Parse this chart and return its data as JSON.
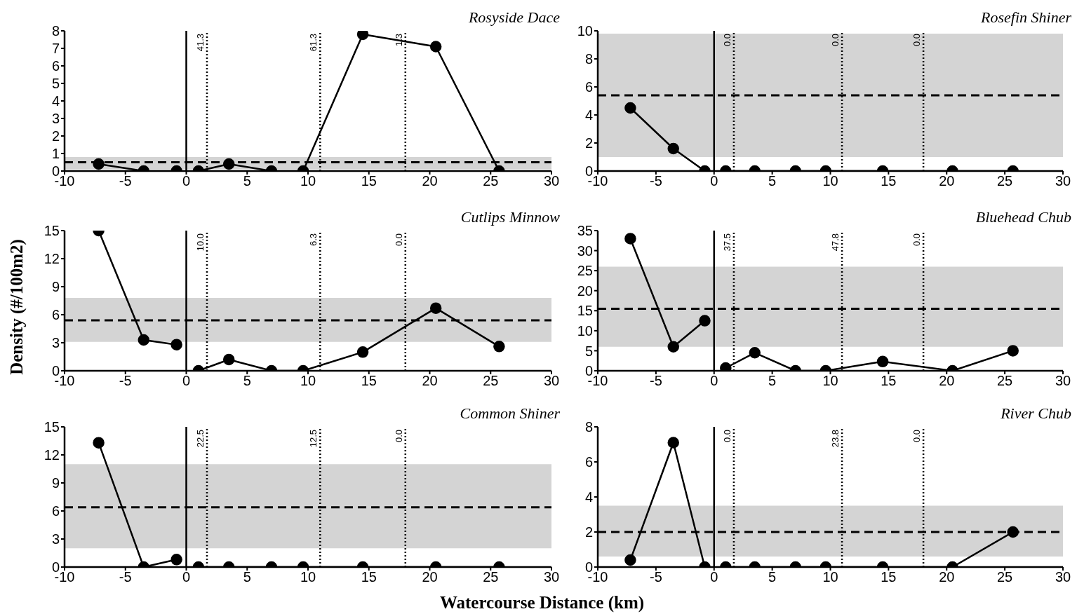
{
  "chart_data": [
    {
      "type": "line",
      "title": "Rosyside Dace",
      "xlim": [
        -10,
        30
      ],
      "xticks": [
        -10,
        -5,
        0,
        5,
        10,
        15,
        20,
        25,
        30
      ],
      "ylim": [
        0,
        8
      ],
      "yticks": [
        0,
        1,
        2,
        3,
        4,
        5,
        6,
        7,
        8
      ],
      "marker": "circle",
      "series": [
        {
          "color": "#000000",
          "x": [
            -7.2,
            -3.5,
            -0.8
          ],
          "values": [
            0.4,
            0,
            0
          ]
        },
        {
          "color": "#000000",
          "x": [
            1,
            3.5,
            7,
            9.6,
            14.5,
            20.5,
            25.7
          ],
          "values": [
            0,
            0.4,
            0,
            0,
            7.8,
            7.1,
            0
          ]
        }
      ],
      "bands": [
        {
          "axis": "y",
          "from": 0.1,
          "to": 0.8,
          "color": "#d4d4d4"
        }
      ],
      "ref_lines": [
        {
          "axis": "y",
          "value": 0.5,
          "line_style": "dashed",
          "color": "#000000"
        },
        {
          "axis": "x",
          "value": 0,
          "line_style": "solid",
          "color": "#000000"
        },
        {
          "axis": "x",
          "value": 1.7,
          "line_style": "dotted",
          "color": "#000000"
        },
        {
          "axis": "x",
          "value": 11,
          "line_style": "dotted",
          "color": "#000000"
        },
        {
          "axis": "x",
          "value": 18,
          "line_style": "dotted",
          "color": "#000000"
        }
      ],
      "annotations": [
        {
          "text": "41.3",
          "x": 1.7,
          "y": 8
        },
        {
          "text": "61.3",
          "x": 11,
          "y": 8
        },
        {
          "text": "1.3",
          "x": 18,
          "y": 8
        }
      ]
    },
    {
      "type": "line",
      "title": "Rosefin Shiner",
      "xlim": [
        -10,
        30
      ],
      "xticks": [
        -10,
        -5,
        0,
        5,
        10,
        15,
        20,
        25,
        30
      ],
      "ylim": [
        0,
        10
      ],
      "yticks": [
        0,
        2,
        4,
        6,
        8,
        10
      ],
      "marker": "circle",
      "series": [
        {
          "color": "#000000",
          "x": [
            -7.2,
            -3.5,
            -0.8
          ],
          "values": [
            4.5,
            1.6,
            0
          ]
        },
        {
          "color": "#000000",
          "x": [
            1,
            3.5,
            7,
            9.6,
            14.5,
            20.5,
            25.7
          ],
          "values": [
            0,
            0,
            0,
            0,
            0,
            0,
            0
          ]
        }
      ],
      "bands": [
        {
          "axis": "y",
          "from": 1,
          "to": 9.8,
          "color": "#d4d4d4"
        }
      ],
      "ref_lines": [
        {
          "axis": "y",
          "value": 5.4,
          "line_style": "dashed",
          "color": "#000000"
        },
        {
          "axis": "x",
          "value": 0,
          "line_style": "solid",
          "color": "#000000"
        },
        {
          "axis": "x",
          "value": 1.7,
          "line_style": "dotted",
          "color": "#000000"
        },
        {
          "axis": "x",
          "value": 11,
          "line_style": "dotted",
          "color": "#000000"
        },
        {
          "axis": "x",
          "value": 18,
          "line_style": "dotted",
          "color": "#000000"
        }
      ],
      "annotations": [
        {
          "text": "0.0",
          "x": 1.7,
          "y": 10
        },
        {
          "text": "0.0",
          "x": 11,
          "y": 10
        },
        {
          "text": "0.0",
          "x": 18,
          "y": 10
        }
      ]
    },
    {
      "type": "line",
      "title": "Cutlips Minnow",
      "ylabel": "Density (#/100m2)",
      "xlim": [
        -10,
        30
      ],
      "xticks": [
        -10,
        -5,
        0,
        5,
        10,
        15,
        20,
        25,
        30
      ],
      "ylim": [
        0,
        15
      ],
      "yticks": [
        0,
        3,
        6,
        9,
        12,
        15
      ],
      "marker": "circle",
      "series": [
        {
          "color": "#000000",
          "x": [
            -7.2,
            -3.5,
            -0.8
          ],
          "values": [
            15,
            3.3,
            2.8
          ]
        },
        {
          "color": "#000000",
          "x": [
            1,
            3.5,
            7,
            9.6,
            14.5,
            20.5,
            25.7
          ],
          "values": [
            0,
            1.2,
            0,
            0,
            2,
            6.7,
            2.6
          ]
        }
      ],
      "bands": [
        {
          "axis": "y",
          "from": 3.1,
          "to": 7.8,
          "color": "#d4d4d4"
        }
      ],
      "ref_lines": [
        {
          "axis": "y",
          "value": 5.4,
          "line_style": "dashed",
          "color": "#000000"
        },
        {
          "axis": "x",
          "value": 0,
          "line_style": "solid",
          "color": "#000000"
        },
        {
          "axis": "x",
          "value": 1.7,
          "line_style": "dotted",
          "color": "#000000"
        },
        {
          "axis": "x",
          "value": 11,
          "line_style": "dotted",
          "color": "#000000"
        },
        {
          "axis": "x",
          "value": 18,
          "line_style": "dotted",
          "color": "#000000"
        }
      ],
      "annotations": [
        {
          "text": "10.0",
          "x": 1.7,
          "y": 15
        },
        {
          "text": "6.3",
          "x": 11,
          "y": 15
        },
        {
          "text": "0.0",
          "x": 18,
          "y": 15
        }
      ]
    },
    {
      "type": "line",
      "title": "Bluehead Chub",
      "xlim": [
        -10,
        30
      ],
      "xticks": [
        -10,
        -5,
        0,
        5,
        10,
        15,
        20,
        25,
        30
      ],
      "ylim": [
        0,
        35
      ],
      "yticks": [
        0,
        5,
        10,
        15,
        20,
        25,
        30,
        35
      ],
      "marker": "circle",
      "series": [
        {
          "color": "#000000",
          "x": [
            -7.2,
            -3.5,
            -0.8
          ],
          "values": [
            33,
            6,
            12.5
          ]
        },
        {
          "color": "#000000",
          "x": [
            1,
            3.5,
            7,
            9.6,
            14.5,
            20.5,
            25.7
          ],
          "values": [
            0.7,
            4.5,
            0,
            0,
            2.3,
            0,
            5
          ]
        }
      ],
      "bands": [
        {
          "axis": "y",
          "from": 6,
          "to": 26,
          "color": "#d4d4d4"
        }
      ],
      "ref_lines": [
        {
          "axis": "y",
          "value": 15.5,
          "line_style": "dashed",
          "color": "#000000"
        },
        {
          "axis": "x",
          "value": 0,
          "line_style": "solid",
          "color": "#000000"
        },
        {
          "axis": "x",
          "value": 1.7,
          "line_style": "dotted",
          "color": "#000000"
        },
        {
          "axis": "x",
          "value": 11,
          "line_style": "dotted",
          "color": "#000000"
        },
        {
          "axis": "x",
          "value": 18,
          "line_style": "dotted",
          "color": "#000000"
        }
      ],
      "annotations": [
        {
          "text": "37.5",
          "x": 1.7,
          "y": 35
        },
        {
          "text": "47.8",
          "x": 11,
          "y": 35
        },
        {
          "text": "0.0",
          "x": 18,
          "y": 35
        }
      ]
    },
    {
      "type": "line",
      "title": "Common Shiner",
      "xlabel": "Watercourse Distance (km)",
      "xlim": [
        -10,
        30
      ],
      "xticks": [
        -10,
        -5,
        0,
        5,
        10,
        15,
        20,
        25,
        30
      ],
      "ylim": [
        0,
        15
      ],
      "yticks": [
        0,
        3,
        6,
        9,
        12,
        15
      ],
      "marker": "circle",
      "series": [
        {
          "color": "#000000",
          "x": [
            -7.2,
            -3.5,
            -0.8
          ],
          "values": [
            13.3,
            0,
            0.8
          ]
        },
        {
          "color": "#000000",
          "x": [
            1,
            3.5,
            7,
            9.6,
            14.5,
            20.5,
            25.7
          ],
          "values": [
            0,
            0,
            0,
            0,
            0,
            0,
            0
          ]
        }
      ],
      "bands": [
        {
          "axis": "y",
          "from": 2,
          "to": 11,
          "color": "#d4d4d4"
        }
      ],
      "ref_lines": [
        {
          "axis": "y",
          "value": 6.4,
          "line_style": "dashed",
          "color": "#000000"
        },
        {
          "axis": "x",
          "value": 0,
          "line_style": "solid",
          "color": "#000000"
        },
        {
          "axis": "x",
          "value": 1.7,
          "line_style": "dotted",
          "color": "#000000"
        },
        {
          "axis": "x",
          "value": 11,
          "line_style": "dotted",
          "color": "#000000"
        },
        {
          "axis": "x",
          "value": 18,
          "line_style": "dotted",
          "color": "#000000"
        }
      ],
      "annotations": [
        {
          "text": "22.5",
          "x": 1.7,
          "y": 15
        },
        {
          "text": "12.5",
          "x": 11,
          "y": 15
        },
        {
          "text": "0.0",
          "x": 18,
          "y": 15
        }
      ]
    },
    {
      "type": "line",
      "title": "River Chub",
      "xlim": [
        -10,
        30
      ],
      "xticks": [
        -10,
        -5,
        0,
        5,
        10,
        15,
        20,
        25,
        30
      ],
      "ylim": [
        0,
        8
      ],
      "yticks": [
        0,
        2,
        4,
        6,
        8
      ],
      "marker": "circle",
      "series": [
        {
          "color": "#000000",
          "x": [
            -7.2,
            -3.5,
            -0.8
          ],
          "values": [
            0.4,
            7.1,
            0
          ]
        },
        {
          "color": "#000000",
          "x": [
            1,
            3.5,
            7,
            9.6,
            14.5,
            20.5,
            25.7
          ],
          "values": [
            0,
            0,
            0,
            0,
            0,
            0,
            2
          ]
        }
      ],
      "bands": [
        {
          "axis": "y",
          "from": 0.6,
          "to": 3.5,
          "color": "#d4d4d4"
        }
      ],
      "ref_lines": [
        {
          "axis": "y",
          "value": 2,
          "line_style": "dashed",
          "color": "#000000"
        },
        {
          "axis": "x",
          "value": 0,
          "line_style": "solid",
          "color": "#000000"
        },
        {
          "axis": "x",
          "value": 1.7,
          "line_style": "dotted",
          "color": "#000000"
        },
        {
          "axis": "x",
          "value": 11,
          "line_style": "dotted",
          "color": "#000000"
        },
        {
          "axis": "x",
          "value": 18,
          "line_style": "dotted",
          "color": "#000000"
        }
      ],
      "annotations": [
        {
          "text": "0.0",
          "x": 1.7,
          "y": 8
        },
        {
          "text": "23.8",
          "x": 11,
          "y": 8
        },
        {
          "text": "0.0",
          "x": 18,
          "y": 8
        }
      ]
    }
  ]
}
